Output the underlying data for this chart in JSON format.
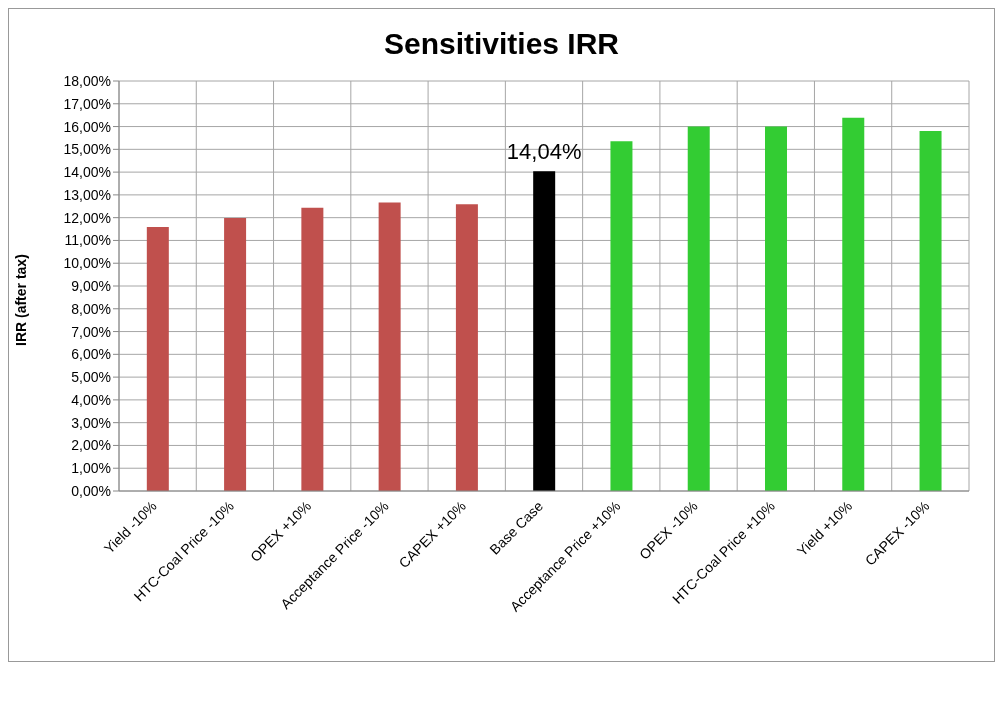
{
  "chart_data": {
    "type": "bar",
    "title": "Sensitivities IRR",
    "ylabel": "IRR (after tax)",
    "categories": [
      "Yield -10%",
      "HTC-Coal Price -10%",
      "OPEX +10%",
      "Acceptance Price -10%",
      "CAPEX +10%",
      "Base Case",
      "Acceptance Price +10%",
      "OPEX -10%",
      "HTC-Coal Price +10%",
      "Yield +10%",
      "CAPEX -10%"
    ],
    "values": [
      11.59,
      11.98,
      12.43,
      12.67,
      12.59,
      14.04,
      15.35,
      16.0,
      16.0,
      16.39,
      15.8
    ],
    "colors": [
      "#c0504d",
      "#c0504d",
      "#c0504d",
      "#c0504d",
      "#c0504d",
      "#000000",
      "#33cc33",
      "#33cc33",
      "#33cc33",
      "#33cc33",
      "#33cc33"
    ],
    "value_labels": [
      null,
      null,
      null,
      null,
      null,
      "14,04%",
      null,
      null,
      null,
      null,
      null
    ],
    "ylim": [
      0,
      18
    ],
    "yticks": [
      {
        "value": 0,
        "label": "0,00%"
      },
      {
        "value": 1,
        "label": "1,00%"
      },
      {
        "value": 2,
        "label": "2,00%"
      },
      {
        "value": 3,
        "label": "3,00%"
      },
      {
        "value": 4,
        "label": "4,00%"
      },
      {
        "value": 5,
        "label": "5,00%"
      },
      {
        "value": 6,
        "label": "6,00%"
      },
      {
        "value": 7,
        "label": "7,00%"
      },
      {
        "value": 8,
        "label": "8,00%"
      },
      {
        "value": 9,
        "label": "9,00%"
      },
      {
        "value": 10,
        "label": "10,00%"
      },
      {
        "value": 11,
        "label": "11,00%"
      },
      {
        "value": 12,
        "label": "12,00%"
      },
      {
        "value": 13,
        "label": "13,00%"
      },
      {
        "value": 14,
        "label": "14,00%"
      },
      {
        "value": 15,
        "label": "15,00%"
      },
      {
        "value": 16,
        "label": "16,00%"
      },
      {
        "value": 17,
        "label": "17,00%"
      },
      {
        "value": 18,
        "label": "18,00%"
      }
    ],
    "grid": true
  }
}
